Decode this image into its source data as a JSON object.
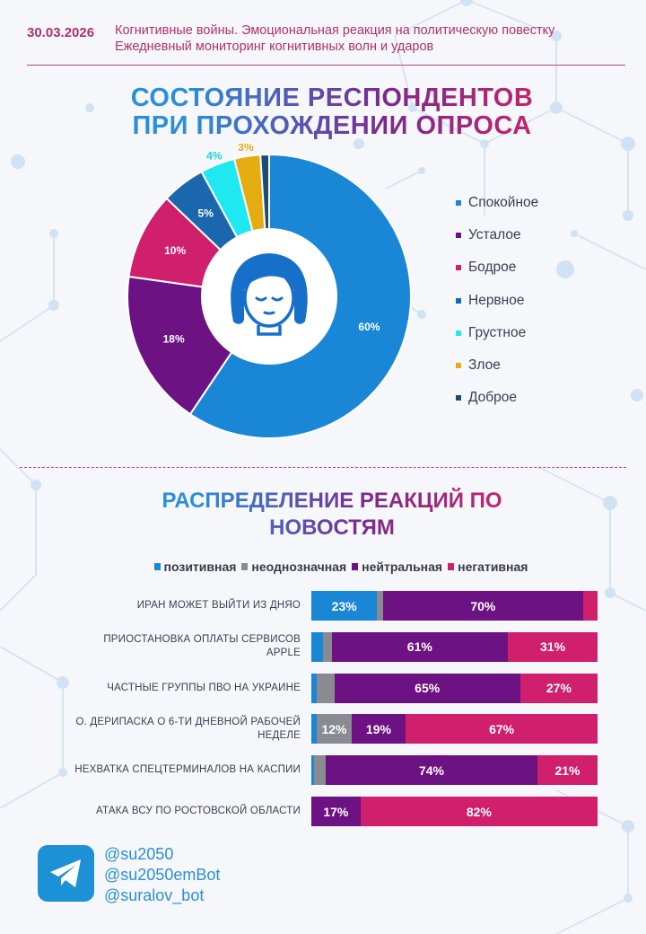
{
  "header": {
    "date": "30.03.2026",
    "line1": "Когнитивные войны. Эмоциональная реакция на политическую повестку",
    "line2": "Ежедневный мониторинг когнитивных волн и ударов"
  },
  "donut_title": {
    "line1": "СОСТОЯНИЕ РЕСПОНДЕНТОВ",
    "line2": "ПРИ ПРОХОЖДЕНИИ ОПРОСА"
  },
  "bar_title": {
    "line1": "РАСПРЕДЕЛЕНИЕ РЕАКЦИЙ ПО",
    "line2": "НОВОСТЯМ"
  },
  "colors": {
    "blue": "#1a87d6",
    "gray": "#8a8a92",
    "purple": "#6c1282",
    "pink": "#cf1f6d",
    "darkblue": "#1b67ae",
    "cyan": "#20e8f0",
    "yellow": "#e4ac10",
    "navy": "#1c4e73"
  },
  "chart_data": [
    {
      "type": "pie",
      "title": "СОСТОЯНИЕ РЕСПОНДЕНТОВ ПРИ ПРОХОЖДЕНИИ ОПРОСА",
      "legend_position": "right",
      "slices": [
        {
          "name": "Спокойное",
          "value": 60,
          "label": "60%",
          "color": "#1a87d6",
          "label_color": "#ffffff"
        },
        {
          "name": "Усталое",
          "value": 18,
          "label": "18%",
          "color": "#6c1282",
          "label_color": "#ffffff"
        },
        {
          "name": "Бодрое",
          "value": 10,
          "label": "10%",
          "color": "#cf1f6d",
          "label_color": "#ffffff"
        },
        {
          "name": "Нервное",
          "value": 5,
          "label": "5%",
          "color": "#1b67ae",
          "label_color": "#ffffff"
        },
        {
          "name": "Грустное",
          "value": 4,
          "label": "4%",
          "color": "#20e8f0",
          "label_color": "#20d0e0"
        },
        {
          "name": "Злое",
          "value": 3,
          "label": "3%",
          "color": "#e4ac10",
          "label_color": "#e4ac10"
        },
        {
          "name": "Доброе",
          "value": 1,
          "label": "",
          "color": "#1c4e73",
          "label_color": "#ffffff"
        }
      ]
    },
    {
      "type": "bar",
      "orientation": "horizontal",
      "stacked": true,
      "title": "РАСПРЕДЕЛЕНИЕ РЕАКЦИЙ ПО НОВОСТЯМ",
      "legend_position": "top",
      "series": [
        {
          "name": "позитивная",
          "color": "#1a87d6"
        },
        {
          "name": "неоднозначная",
          "color": "#8a8a92"
        },
        {
          "name": "нейтральная",
          "color": "#6c1282"
        },
        {
          "name": "негативная",
          "color": "#cf1f6d"
        }
      ],
      "rows": [
        {
          "line1": "ИРАН МОЖЕТ ВЫЙТИ ИЗ ДНЯО",
          "line2": "",
          "values": [
            23,
            2,
            70,
            5
          ],
          "labels": [
            "23%",
            "",
            "70%",
            ""
          ]
        },
        {
          "line1": "ПРИОСТАНОВКА ОПЛАТЫ СЕРВИСОВ",
          "line2": "APPLE",
          "values": [
            4,
            3,
            61,
            31
          ],
          "labels": [
            "",
            "",
            "61%",
            "31%"
          ]
        },
        {
          "line1": "ЧАСТНЫЕ ГРУППЫ ПВО НА УКРАИНЕ",
          "line2": "",
          "values": [
            2,
            6,
            65,
            27
          ],
          "labels": [
            "",
            "",
            "65%",
            "27%"
          ]
        },
        {
          "line1": "О. ДЕРИПАСКА О 6-ТИ ДНЕВНОЙ РАБОЧЕЙ",
          "line2": "НЕДЕЛЕ",
          "values": [
            2,
            12,
            19,
            67
          ],
          "labels": [
            "",
            "12%",
            "19%",
            "67%"
          ]
        },
        {
          "line1": "НЕХВАТКА СПЕЦТЕРМИНАЛОВ НА КАСПИИ",
          "line2": "",
          "values": [
            1,
            4,
            74,
            21
          ],
          "labels": [
            "",
            "",
            "74%",
            "21%"
          ]
        },
        {
          "line1": "АТАКА ВСУ ПО РОСТОВСКОЙ ОБЛАСТИ",
          "line2": "",
          "values": [
            0,
            0,
            17,
            82
          ],
          "labels": [
            "",
            "",
            "17%",
            "82%"
          ]
        }
      ]
    }
  ],
  "footer": {
    "handles": [
      "@su2050",
      "@su2050emBot",
      "@suralov_bot"
    ]
  }
}
